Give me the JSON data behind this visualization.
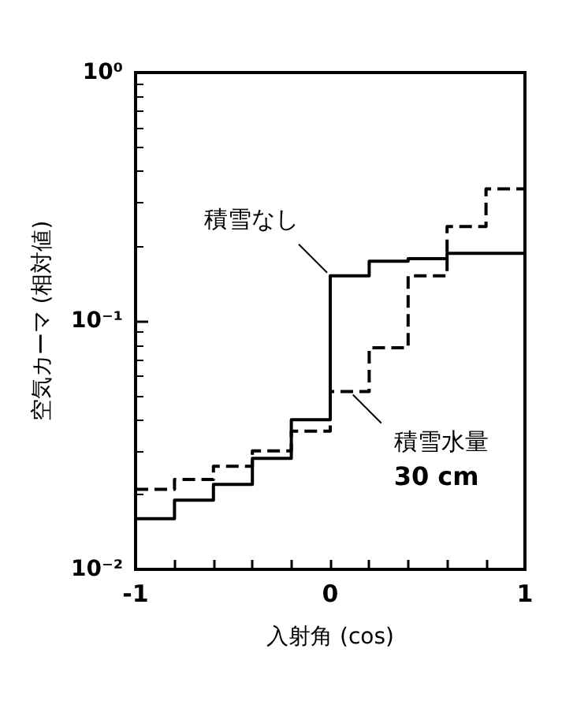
{
  "chart_data": {
    "type": "histogram",
    "xlabel": "入射角 (cos)",
    "ylabel": "空気カーマ (相対値)",
    "bins": [
      -1,
      -0.8,
      -0.6,
      -0.4,
      -0.2,
      0,
      0.2,
      0.4,
      0.6,
      0.8,
      1
    ],
    "series": [
      {
        "color": "#000000",
        "line_style": "solid",
        "values": [
          0.016,
          0.019,
          0.022,
          0.028,
          0.04,
          0.152,
          0.174,
          0.178,
          0.187,
          0.187
        ]
      },
      {
        "color": "#000000",
        "line_style": "dashed",
        "values": [
          0.021,
          0.023,
          0.026,
          0.03,
          0.036,
          0.052,
          0.078,
          0.152,
          0.24,
          0.34
        ]
      }
    ],
    "log": "y",
    "xlim": [
      -1,
      1
    ],
    "ylim": [
      0.01,
      1
    ],
    "xticks": [
      -1,
      {
        "value": -0.8,
        "label": null
      },
      {
        "value": -0.6,
        "label": null
      },
      {
        "value": -0.4,
        "label": null
      },
      {
        "value": -0.2,
        "label": null
      },
      0,
      {
        "value": 0.2,
        "label": null
      },
      {
        "value": 0.4,
        "label": null
      },
      {
        "value": 0.6,
        "label": null
      },
      {
        "value": 0.8,
        "label": null
      },
      1
    ],
    "yticks": [
      {
        "value": 0.01,
        "label": "10⁻²"
      },
      {
        "value": 0.1,
        "label": "10⁻¹"
      },
      {
        "value": 1,
        "label": "10⁰"
      }
    ],
    "annotations": [
      {
        "text": "積雪なし",
        "x": 0,
        "y": 0.152
      },
      {
        "text": "積雪水量\n30 cm",
        "x": 0.1,
        "y": 0.052
      }
    ],
    "grid": false
  }
}
